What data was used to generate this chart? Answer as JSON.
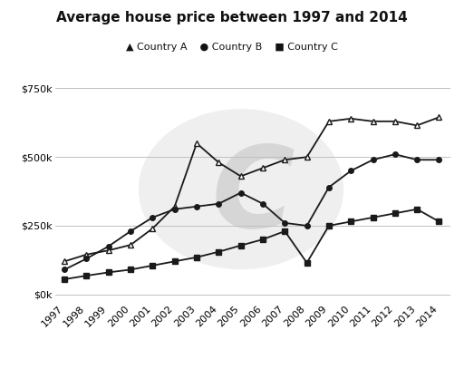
{
  "title": "Average house price between 1997 and 2014",
  "legend": [
    "Country A",
    "Country B",
    "Country C"
  ],
  "years": [
    1997,
    1998,
    1999,
    2000,
    2001,
    2002,
    2003,
    2004,
    2005,
    2006,
    2007,
    2008,
    2009,
    2010,
    2011,
    2012,
    2013,
    2014
  ],
  "country_A": [
    120000,
    145000,
    160000,
    180000,
    240000,
    320000,
    550000,
    480000,
    430000,
    460000,
    490000,
    500000,
    630000,
    640000,
    630000,
    630000,
    615000,
    645000
  ],
  "country_B": [
    90000,
    130000,
    175000,
    230000,
    280000,
    310000,
    320000,
    330000,
    370000,
    330000,
    260000,
    250000,
    390000,
    450000,
    490000,
    510000,
    490000,
    490000
  ],
  "country_C": [
    55000,
    68000,
    80000,
    90000,
    105000,
    120000,
    135000,
    155000,
    178000,
    200000,
    230000,
    115000,
    250000,
    265000,
    280000,
    295000,
    310000,
    265000
  ],
  "country_A_marker": "^",
  "country_B_marker": "o",
  "country_C_marker": "s",
  "line_color": "#1a1a1a",
  "yticks": [
    0,
    250000,
    500000,
    750000
  ],
  "ytick_labels": [
    "$0k",
    "$250k",
    "$500k",
    "$750k"
  ],
  "ylim": [
    -30000,
    830000
  ],
  "xlim": [
    1996.6,
    2014.5
  ],
  "background_color": "#ffffff",
  "watermark_color": "#cccccc",
  "marker_size": 4,
  "line_width": 1.3,
  "title_fontsize": 11,
  "legend_fontsize": 8,
  "tick_fontsize": 8
}
